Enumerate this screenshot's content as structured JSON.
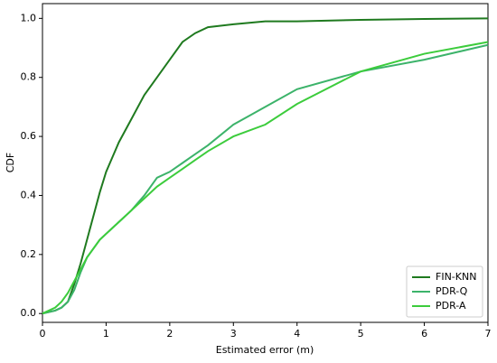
{
  "chart_data": {
    "type": "line",
    "x_label": "Estimated error (m)",
    "y_label": "CDF",
    "x": [
      0,
      0.2,
      0.3,
      0.4,
      0.5,
      0.6,
      0.7,
      0.8,
      0.9,
      1.0,
      1.2,
      1.4,
      1.6,
      1.8,
      2.0,
      2.2,
      2.4,
      2.6,
      3,
      3.5,
      4,
      5,
      6,
      7
    ],
    "series": [
      {
        "name": "FIN-KNN",
        "color": "#1f7a1f",
        "values": [
          0,
          0.01,
          0.02,
          0.04,
          0.1,
          0.17,
          0.25,
          0.33,
          0.41,
          0.48,
          0.58,
          0.66,
          0.74,
          0.8,
          0.86,
          0.92,
          0.95,
          0.97,
          0.98,
          0.99,
          0.99,
          0.995,
          0.998,
          1.0
        ]
      },
      {
        "name": "PDR-Q",
        "color": "#3cb36a",
        "values": [
          0,
          0.01,
          0.02,
          0.04,
          0.08,
          0.14,
          0.19,
          0.22,
          0.25,
          0.27,
          0.31,
          0.35,
          0.4,
          0.46,
          0.48,
          0.51,
          0.54,
          0.57,
          0.64,
          0.7,
          0.76,
          0.82,
          0.86,
          0.91
        ]
      },
      {
        "name": "PDR-A",
        "color": "#3ccc3c",
        "values": [
          0,
          0.02,
          0.04,
          0.07,
          0.11,
          0.15,
          0.19,
          0.22,
          0.25,
          0.27,
          0.31,
          0.35,
          0.39,
          0.43,
          0.46,
          0.49,
          0.52,
          0.55,
          0.6,
          0.64,
          0.71,
          0.82,
          0.88,
          0.92
        ]
      }
    ],
    "xlim": [
      0,
      7
    ],
    "xticks": [
      0,
      1,
      2,
      3,
      4,
      5,
      6,
      7
    ],
    "ylim": [
      -0.03,
      1.05
    ],
    "yticks": [
      {
        "value": 0,
        "label": "0.0"
      },
      {
        "value": 0.2,
        "label": "0.2"
      },
      {
        "value": 0.4,
        "label": "0.4"
      },
      {
        "value": 0.6,
        "label": "0.6"
      },
      {
        "value": 0.8,
        "label": "0.8"
      },
      {
        "value": 1.0,
        "label": "1.0"
      }
    ],
    "grid": false,
    "legend": "lower right"
  }
}
